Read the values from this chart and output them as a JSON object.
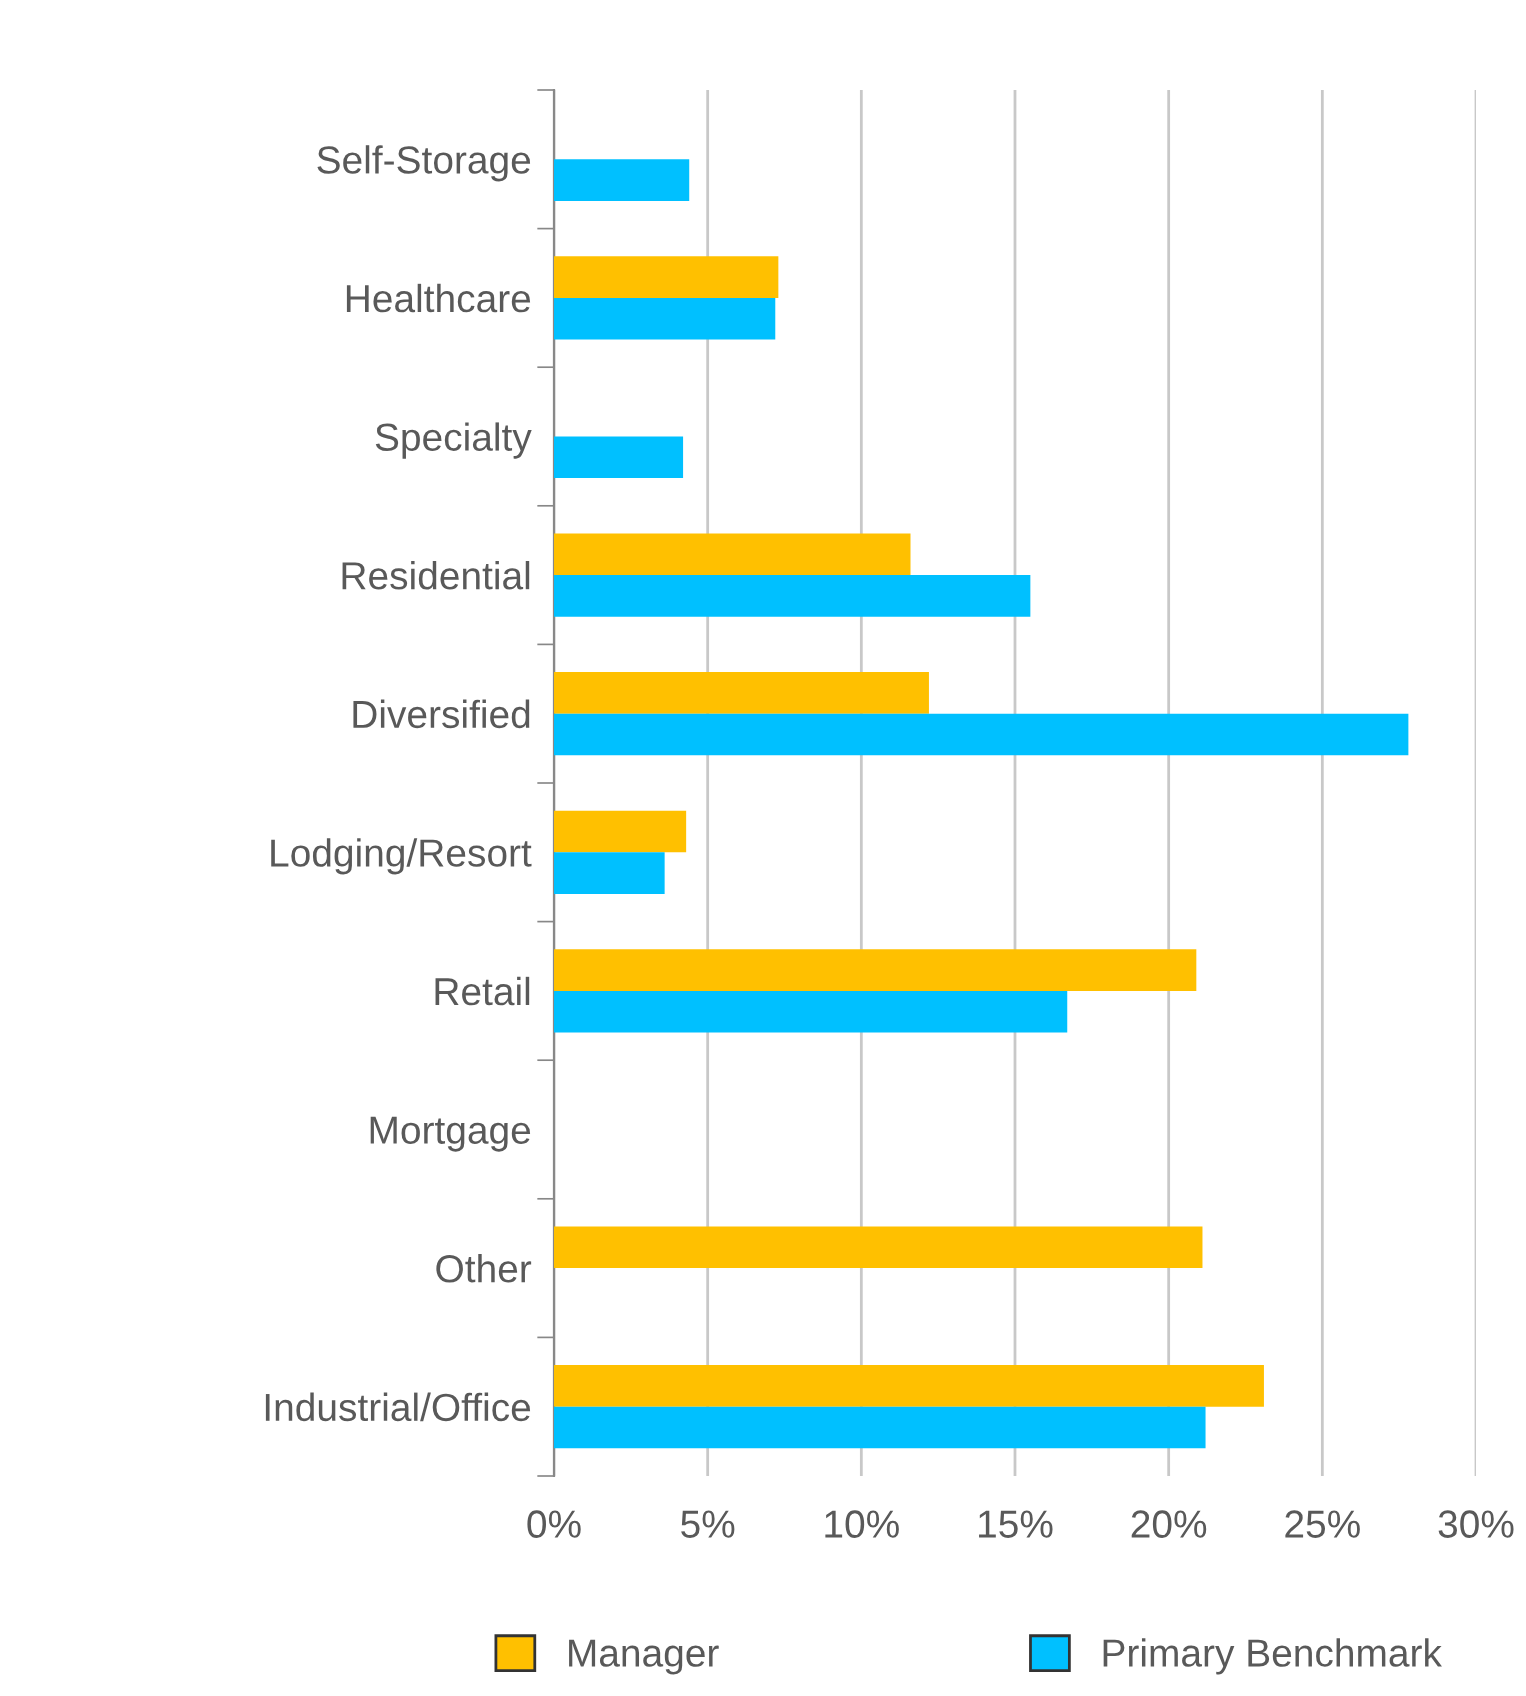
{
  "chart_data": {
    "type": "bar",
    "orientation": "horizontal",
    "categories": [
      "Self-Storage",
      "Healthcare",
      "Specialty",
      "Residential",
      "Diversified",
      "Lodging/Resort",
      "Retail",
      "Mortgage",
      "Other",
      "Industrial/Office"
    ],
    "series": [
      {
        "name": "Manager",
        "color": "#ffc000",
        "values": [
          null,
          7.3,
          null,
          11.6,
          12.2,
          4.3,
          20.9,
          null,
          21.1,
          23.1
        ]
      },
      {
        "name": "Primary Benchmark",
        "color": "#00c0ff",
        "values": [
          4.4,
          7.2,
          4.2,
          15.5,
          27.8,
          3.6,
          16.7,
          null,
          null,
          21.2
        ]
      }
    ],
    "xlim": [
      0,
      30
    ],
    "xticks": [
      {
        "value": 0,
        "label": "0%"
      },
      {
        "value": 5,
        "label": "5%"
      },
      {
        "value": 10,
        "label": "10%"
      },
      {
        "value": 15,
        "label": "15%"
      },
      {
        "value": 20,
        "label": "20%"
      },
      {
        "value": 25,
        "label": "25%"
      },
      {
        "value": 30,
        "label": "30%"
      }
    ],
    "grid": "x",
    "legend": "bottom"
  }
}
